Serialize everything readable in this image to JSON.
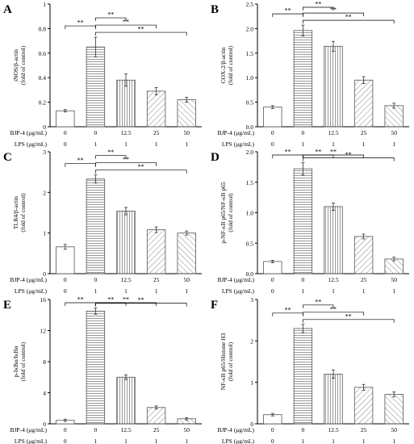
{
  "chart_data": [
    {
      "panel": "A",
      "type": "bar",
      "categories": [
        "0",
        "0",
        "12.5",
        "25",
        "50"
      ],
      "values": [
        0.13,
        0.65,
        0.38,
        0.29,
        0.22
      ],
      "errors": [
        0.01,
        0.08,
        0.05,
        0.03,
        0.02
      ],
      "ylabel": "iNOS/β-actin",
      "ylabel2": "(fold of control)",
      "yticks": [
        0,
        0.2,
        0.4,
        0.6,
        0.8,
        1.0
      ],
      "ytick_labels": [
        "0",
        "0.2",
        "0.4",
        "0.6",
        "0.8",
        "1"
      ],
      "ylim": [
        0,
        1.0
      ],
      "row_labels": [
        "BJP-4 (μg/mL)",
        "LPS (μg/mL)"
      ],
      "bjp": [
        "0",
        "0",
        "12.5",
        "25",
        "50"
      ],
      "lps": [
        "0",
        "1",
        "1",
        "1",
        "1"
      ],
      "significance": [
        {
          "from": 0,
          "to": 1,
          "label": "**"
        },
        {
          "from": 1,
          "to": 2,
          "label": "**"
        },
        {
          "from": 1,
          "to": 3,
          "label": "**"
        },
        {
          "from": 1,
          "to": 4,
          "label": "**"
        }
      ]
    },
    {
      "panel": "B",
      "type": "bar",
      "categories": [
        "0",
        "0",
        "12.5",
        "25",
        "50"
      ],
      "values": [
        0.4,
        1.96,
        1.64,
        0.95,
        0.43
      ],
      "errors": [
        0.03,
        0.11,
        0.1,
        0.07,
        0.05
      ],
      "ylabel": "COX-2/β-actin",
      "ylabel2": "(fold of control)",
      "yticks": [
        0,
        0.5,
        1.0,
        1.5,
        2.0,
        2.5
      ],
      "ytick_labels": [
        "0.0",
        "0.5",
        "1.0",
        "1.5",
        "2.0",
        "2.5"
      ],
      "ylim": [
        0,
        2.5
      ],
      "row_labels": [
        "BJP-4 (μg/mL)",
        "LPS (μg/mL)"
      ],
      "bjp": [
        "0",
        "0",
        "12.5",
        "25",
        "50"
      ],
      "lps": [
        "0",
        "1",
        "1",
        "1",
        "1"
      ],
      "significance": [
        {
          "from": 0,
          "to": 1,
          "label": "**"
        },
        {
          "from": 1,
          "to": 2,
          "label": "**"
        },
        {
          "from": 1,
          "to": 3,
          "label": "**"
        },
        {
          "from": 1,
          "to": 4,
          "label": "**"
        }
      ]
    },
    {
      "panel": "C",
      "type": "bar",
      "categories": [
        "0",
        "0",
        "12.5",
        "25",
        "50"
      ],
      "values": [
        0.66,
        2.33,
        1.54,
        1.08,
        1.0
      ],
      "errors": [
        0.06,
        0.1,
        0.09,
        0.07,
        0.05
      ],
      "ylabel": "TLR4/β-actin",
      "ylabel2": "(fold of control)",
      "yticks": [
        0,
        1,
        2,
        3
      ],
      "ytick_labels": [
        "0",
        "1",
        "2",
        "3"
      ],
      "ylim": [
        0,
        3
      ],
      "row_labels": [
        "BJP-4 (μg/mL)",
        "LPS (μg/mL)"
      ],
      "bjp": [
        "0",
        "0",
        "12.5",
        "25",
        "50"
      ],
      "lps": [
        "0",
        "1",
        "1",
        "1",
        "1"
      ],
      "significance": [
        {
          "from": 0,
          "to": 1,
          "label": "**"
        },
        {
          "from": 1,
          "to": 2,
          "label": "**"
        },
        {
          "from": 1,
          "to": 3,
          "label": "**"
        },
        {
          "from": 1,
          "to": 4,
          "label": "**"
        }
      ]
    },
    {
      "panel": "D",
      "type": "bar",
      "categories": [
        "0",
        "0",
        "12.5",
        "25",
        "50"
      ],
      "values": [
        0.2,
        1.72,
        1.1,
        0.61,
        0.24
      ],
      "errors": [
        0.02,
        0.1,
        0.06,
        0.04,
        0.03
      ],
      "ylabel": "p-NF-κB p65/NF-κB p65",
      "ylabel2": "(fold of control)",
      "yticks": [
        0,
        0.5,
        1.0,
        1.5,
        2.0
      ],
      "ytick_labels": [
        "0.0",
        "0.5",
        "1.0",
        "1.5",
        "2.0"
      ],
      "ylim": [
        0,
        2.0
      ],
      "row_labels": [
        "BJP-4 (μg/mL)",
        "LPS (μg/mL)"
      ],
      "bjp": [
        "0",
        "0",
        "12.5",
        "25",
        "50"
      ],
      "lps": [
        "0",
        "1",
        "1",
        "1",
        "1"
      ],
      "significance": [
        {
          "from": 0,
          "to": 1,
          "label": "**"
        },
        {
          "from": 1,
          "to": 2,
          "label": "**"
        },
        {
          "from": 1,
          "to": 3,
          "label": "**"
        },
        {
          "from": 1,
          "to": 4,
          "label": "**"
        }
      ]
    },
    {
      "panel": "E",
      "type": "bar",
      "categories": [
        "0",
        "0",
        "12.5",
        "25",
        "50"
      ],
      "values": [
        0.45,
        14.5,
        6.0,
        2.1,
        0.65
      ],
      "errors": [
        0.15,
        0.4,
        0.3,
        0.2,
        0.15
      ],
      "ylabel": "p-IκBα/IκBα",
      "ylabel2": "(fold of control)",
      "yticks": [
        0,
        4,
        8,
        12,
        16
      ],
      "ytick_labels": [
        "0",
        "4",
        "8",
        "12",
        "16"
      ],
      "ylim": [
        0,
        16
      ],
      "row_labels": [
        "BJP-4 (μg/mL)",
        "LPS (μg/mL)"
      ],
      "bjp": [
        "0",
        "0",
        "12.5",
        "25",
        "50"
      ],
      "lps": [
        "0",
        "1",
        "1",
        "1",
        "1"
      ],
      "significance": [
        {
          "from": 0,
          "to": 1,
          "label": "**"
        },
        {
          "from": 1,
          "to": 2,
          "label": "**"
        },
        {
          "from": 1,
          "to": 3,
          "label": "**"
        },
        {
          "from": 1,
          "to": 4,
          "label": "**"
        }
      ]
    },
    {
      "panel": "F",
      "type": "bar",
      "categories": [
        "0",
        "0",
        "12.5",
        "25",
        "50"
      ],
      "values": [
        0.22,
        2.3,
        1.2,
        0.88,
        0.71
      ],
      "errors": [
        0.03,
        0.1,
        0.1,
        0.07,
        0.06
      ],
      "ylabel": "NF-κB p65/Histone H3",
      "ylabel2": "(fold of control)",
      "yticks": [
        0,
        1,
        2,
        3
      ],
      "ytick_labels": [
        "0",
        "1",
        "2",
        "3"
      ],
      "ylim": [
        0,
        3
      ],
      "row_labels": [
        "BJP-4 (μg/mL)",
        "LPS (μg/mL)"
      ],
      "bjp": [
        "0",
        "0",
        "12.5",
        "25",
        "50"
      ],
      "lps": [
        "0",
        "1",
        "1",
        "1",
        "1"
      ],
      "significance": [
        {
          "from": 0,
          "to": 1,
          "label": "**"
        },
        {
          "from": 1,
          "to": 2,
          "label": "**"
        },
        {
          "from": 1,
          "to": 3,
          "label": "**"
        },
        {
          "from": 1,
          "to": 4,
          "label": "**"
        }
      ]
    }
  ]
}
